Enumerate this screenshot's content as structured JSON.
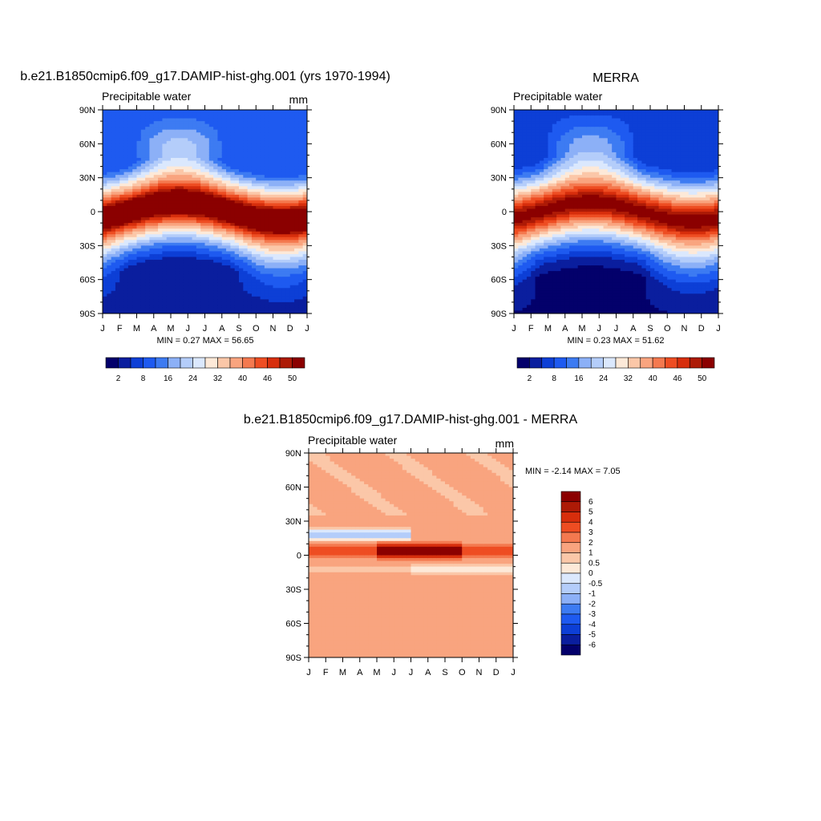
{
  "colors": {
    "seq": [
      "#03006b",
      "#0a1e9e",
      "#0d3fd6",
      "#1e5af0",
      "#3d7bf2",
      "#8cb0f7",
      "#b4cdfa",
      "#dbe8fd",
      "#fde9d8",
      "#fbc7a8",
      "#f9a47f",
      "#f4794f",
      "#ee4d22",
      "#d72e0c",
      "#ad1a06",
      "#8b0000"
    ],
    "diff": [
      "#03006b",
      "#0a1e9e",
      "#0d3fd6",
      "#1e5af0",
      "#3d7bf2",
      "#8cb0f7",
      "#b4cdfa",
      "#dbe8fd",
      "#fde9d8",
      "#fbc7a8",
      "#f9a47f",
      "#f4794f",
      "#ee4d22",
      "#d72e0c",
      "#ad1a06",
      "#8b0000"
    ]
  },
  "chart_data": [
    {
      "id": "model",
      "type": "heatmap",
      "title": "b.e21.B1850cmip6.f09_g17.DAMIP-hist-ghg.001 (yrs 1970-1994)",
      "left_label": "Precipitable water",
      "units": "mm",
      "ylim": [
        -90,
        90
      ],
      "yticks": [
        "90N",
        "60N",
        "30N",
        "0",
        "30S",
        "60S",
        "90S"
      ],
      "xticks": [
        "J",
        "F",
        "M",
        "A",
        "M",
        "J",
        "J",
        "A",
        "S",
        "O",
        "N",
        "D",
        "J"
      ],
      "stats": "MIN =   0.27 MAX =  56.65",
      "min": 0.27,
      "max": 56.65,
      "colorbar_labels": [
        "2",
        "8",
        "16",
        "24",
        "32",
        "40",
        "46",
        "50"
      ],
      "field": {
        "eq_max": 55,
        "eq_shift": 8,
        "pole_n": 8,
        "pole_s": 3,
        "width": 22
      }
    },
    {
      "id": "obs",
      "type": "heatmap",
      "title": "MERRA",
      "left_label": "Precipitable water",
      "units": "",
      "ylim": [
        -90,
        90
      ],
      "yticks": [
        "90N",
        "60N",
        "30N",
        "0",
        "30S",
        "60S",
        "90S"
      ],
      "xticks": [
        "J",
        "F",
        "M",
        "A",
        "M",
        "J",
        "J",
        "A",
        "S",
        "O",
        "N",
        "D",
        "J"
      ],
      "stats": "MIN =   0.23 MAX =  51.62",
      "min": 0.23,
      "max": 51.62,
      "colorbar_labels": [
        "2",
        "8",
        "16",
        "24",
        "32",
        "40",
        "46",
        "50"
      ],
      "field": {
        "eq_max": 51,
        "eq_shift": 8,
        "pole_n": 5,
        "pole_s": 1.5,
        "width": 22
      }
    },
    {
      "id": "diff",
      "type": "heatmap",
      "title": "b.e21.B1850cmip6.f09_g17.DAMIP-hist-ghg.001 - MERRA",
      "left_label": "Precipitable water",
      "units": "mm",
      "ylim": [
        -90,
        90
      ],
      "yticks": [
        "90N",
        "60N",
        "30N",
        "0",
        "30S",
        "60S",
        "90S"
      ],
      "xticks": [
        "J",
        "F",
        "M",
        "A",
        "M",
        "J",
        "J",
        "A",
        "S",
        "O",
        "N",
        "D",
        "J"
      ],
      "stats": "MIN =  -2.14 MAX =   7.05",
      "min": -2.14,
      "max": 7.05,
      "colorbar_labels": [
        "6",
        "5",
        "4",
        "3",
        "2",
        "1",
        "0.5",
        "0",
        "-0.5",
        "-1",
        "-2",
        "-3",
        "-4",
        "-5",
        "-6"
      ]
    }
  ]
}
